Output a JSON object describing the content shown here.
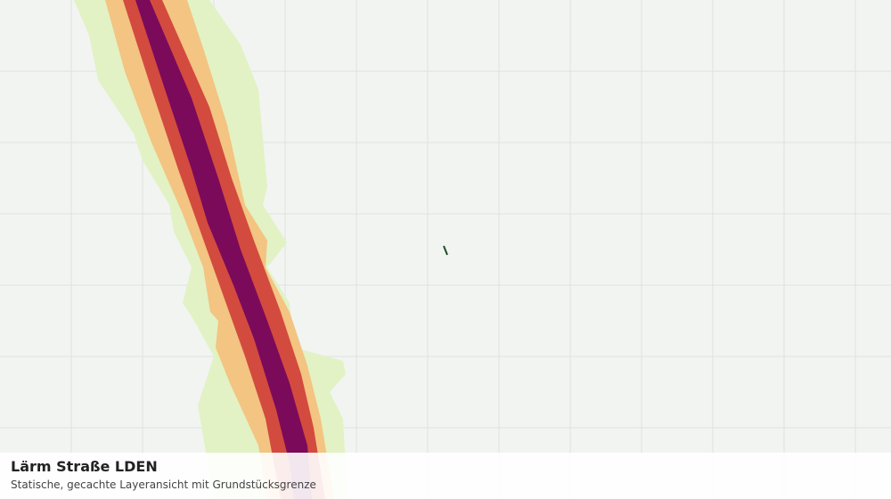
{
  "legend_panel": {
    "title": "Lärm Straße LDEN",
    "subtitle": "Statische, gecachte Layeransicht mit Grundstücksgrenze"
  }
}
